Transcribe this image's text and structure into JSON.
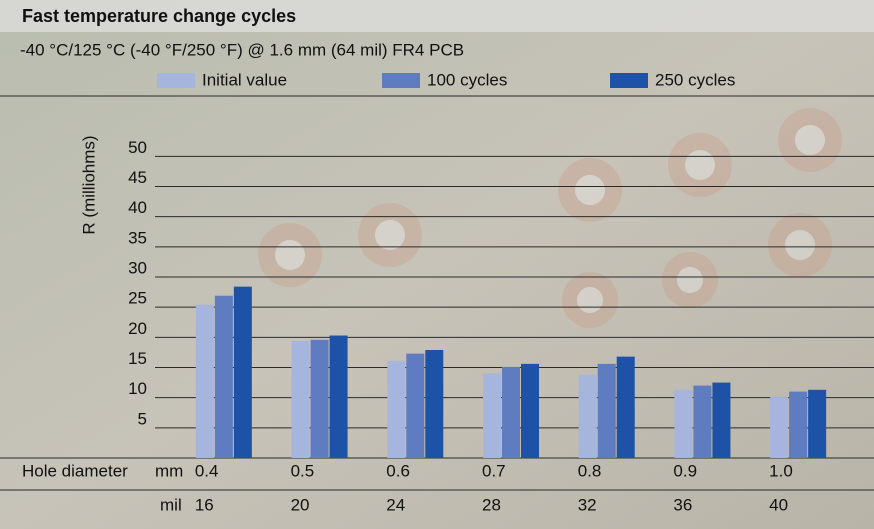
{
  "chart_data": {
    "type": "bar",
    "title": "Fast temperature change cycles",
    "subtitle": "-40 °C/125 °C (-40 °F/250 °F) @ 1.6 mm (64 mil) FR4 PCB",
    "y_label": "R (milliohms)",
    "x_label": "Hole diameter",
    "x_unit": "mm",
    "x2_unit": "mil",
    "categories": [
      "0.4",
      "0.5",
      "0.6",
      "0.7",
      "0.8",
      "0.9",
      "1.0"
    ],
    "categories_mil": [
      "16",
      "20",
      "24",
      "28",
      "32",
      "36",
      "40"
    ],
    "series": [
      {
        "name": "Initial value",
        "color": "#a5b5de",
        "values": [
          25.4,
          19.4,
          16.1,
          14.0,
          13.8,
          11.3,
          10.1
        ]
      },
      {
        "name": "100 cycles",
        "color": "#5f7cc0",
        "values": [
          26.9,
          19.6,
          17.3,
          15.1,
          15.6,
          12.0,
          11.0
        ]
      },
      {
        "name": "250 cycles",
        "color": "#1e52a6",
        "values": [
          28.4,
          20.3,
          17.9,
          15.6,
          16.8,
          12.5,
          11.3
        ]
      }
    ],
    "ylim": [
      0,
      60
    ],
    "yticks": [
      5,
      10,
      15,
      20,
      25,
      30,
      35,
      40,
      45,
      50
    ],
    "grid": true
  }
}
